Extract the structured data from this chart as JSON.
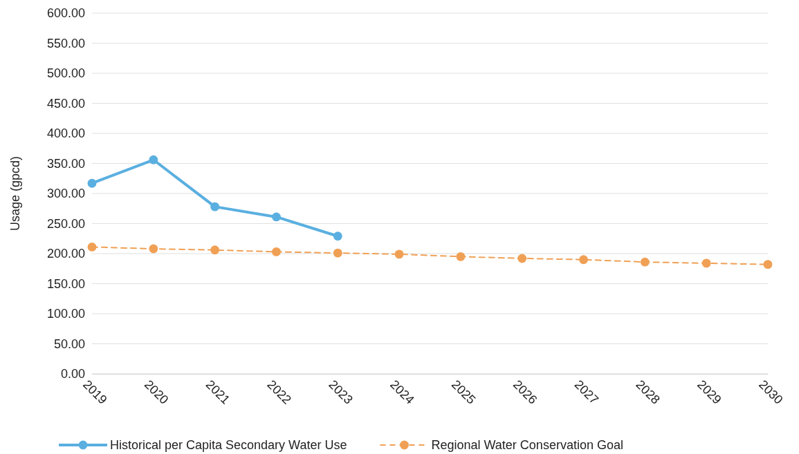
{
  "chart_data": {
    "type": "line",
    "ylabel": "Usage (gpcd)",
    "categories": [
      "2019",
      "2020",
      "2021",
      "2022",
      "2023",
      "2024",
      "2025",
      "2026",
      "2027",
      "2028",
      "2029",
      "2030"
    ],
    "series": [
      {
        "name": "Historical per Capita Secondary Water Use",
        "color": "#5aafe0",
        "line_style": "solid",
        "values": [
          317,
          356,
          278,
          261,
          229,
          null,
          null,
          null,
          null,
          null,
          null,
          null
        ]
      },
      {
        "name": "Regional Water Conservation Goal",
        "color": "#f0a055",
        "line_style": "dashed",
        "values": [
          211,
          208,
          206,
          203,
          201,
          199,
          195,
          192,
          190,
          186,
          184,
          182
        ]
      }
    ],
    "ylim": [
      0,
      600
    ],
    "yticks": [
      {
        "value": 0,
        "label": "0.00"
      },
      {
        "value": 50,
        "label": "50.00"
      },
      {
        "value": 100,
        "label": "100.00"
      },
      {
        "value": 150,
        "label": "150.00"
      },
      {
        "value": 200,
        "label": "200.00"
      },
      {
        "value": 250,
        "label": "250.00"
      },
      {
        "value": 300,
        "label": "300.00"
      },
      {
        "value": 350,
        "label": "350.00"
      },
      {
        "value": 400,
        "label": "400.00"
      },
      {
        "value": 450,
        "label": "450.00"
      },
      {
        "value": 500,
        "label": "500.00"
      },
      {
        "value": 550,
        "label": "550.00"
      },
      {
        "value": 600,
        "label": "600.00"
      }
    ],
    "grid": "y",
    "legend": "bottom",
    "marker": "circle"
  }
}
